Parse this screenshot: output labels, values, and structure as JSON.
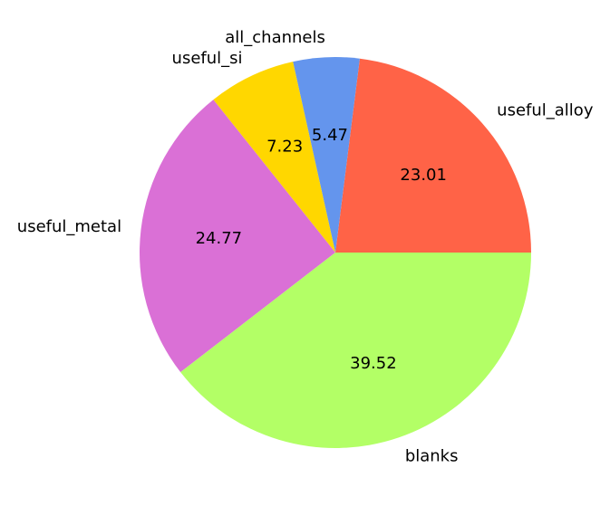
{
  "chart_data": {
    "type": "pie",
    "title": "",
    "start_angle_deg": 0,
    "direction": "counterclockwise",
    "value_format": "%.2f",
    "slices": [
      {
        "label": "useful_alloy",
        "value": 23.01,
        "color": "#FF6347"
      },
      {
        "label": "all_channels",
        "value": 5.47,
        "color": "#6495ED"
      },
      {
        "label": "useful_si",
        "value": 7.23,
        "color": "#FFD700"
      },
      {
        "label": "useful_metal",
        "value": 24.77,
        "color": "#DA70D6"
      },
      {
        "label": "blanks",
        "value": 39.52,
        "color": "#B3FF66"
      }
    ]
  }
}
